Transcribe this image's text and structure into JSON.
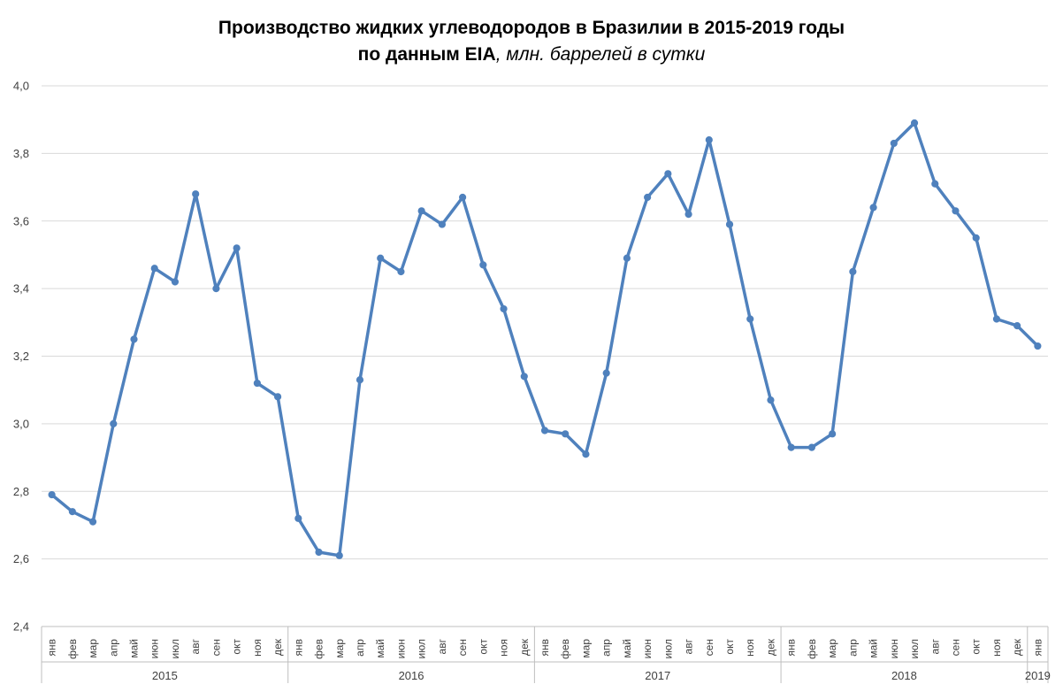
{
  "colors": {
    "line": "#4f81bd",
    "grid": "#d9d9d9",
    "axis": "#bfbfbf",
    "text": "#404040"
  },
  "chart_data": {
    "type": "line",
    "title_bold": "Производство жидких углеводородов в Бразилии в 2015-2019 годы",
    "title_line2_bold": "по данным EIA",
    "title_line2_italic": ", млн. баррелей в сутки",
    "ylim": [
      2.4,
      4.0
    ],
    "yticks": [
      "2,4",
      "2,6",
      "2,8",
      "3,0",
      "3,2",
      "3,4",
      "3,6",
      "3,8",
      "4,0"
    ],
    "ytick_values": [
      2.4,
      2.6,
      2.8,
      3.0,
      3.2,
      3.4,
      3.6,
      3.8,
      4.0
    ],
    "grid": true,
    "legend": "none",
    "categories": [
      "янв",
      "фев",
      "мар",
      "апр",
      "май",
      "июн",
      "июл",
      "авг",
      "сен",
      "окт",
      "ноя",
      "дек",
      "янв",
      "фев",
      "мар",
      "апр",
      "май",
      "июн",
      "июл",
      "авг",
      "сен",
      "окт",
      "ноя",
      "дек",
      "янв",
      "фев",
      "мар",
      "апр",
      "май",
      "июн",
      "июл",
      "авг",
      "сен",
      "окт",
      "ноя",
      "дек",
      "янв",
      "фев",
      "мар",
      "апр",
      "май",
      "июн",
      "июл",
      "авг",
      "сен",
      "окт",
      "ноя",
      "дек",
      "янв"
    ],
    "years": [
      {
        "label": "2015",
        "months": 12
      },
      {
        "label": "2016",
        "months": 12
      },
      {
        "label": "2017",
        "months": 12
      },
      {
        "label": "2018",
        "months": 12
      },
      {
        "label": "2019",
        "months": 1
      }
    ],
    "series": [
      {
        "values": [
          2.79,
          2.74,
          2.71,
          3.0,
          3.25,
          3.46,
          3.42,
          3.68,
          3.4,
          3.52,
          3.12,
          3.08,
          2.72,
          2.62,
          2.61,
          3.13,
          3.49,
          3.45,
          3.63,
          3.59,
          3.67,
          3.47,
          3.34,
          3.14,
          2.98,
          2.97,
          2.91,
          3.15,
          3.49,
          3.67,
          3.74,
          3.62,
          3.84,
          3.59,
          3.31,
          3.07,
          2.93,
          2.93,
          2.97,
          3.45,
          3.64,
          3.83,
          3.89,
          3.71,
          3.63,
          3.55,
          3.31,
          3.29,
          3.23
        ]
      }
    ]
  }
}
